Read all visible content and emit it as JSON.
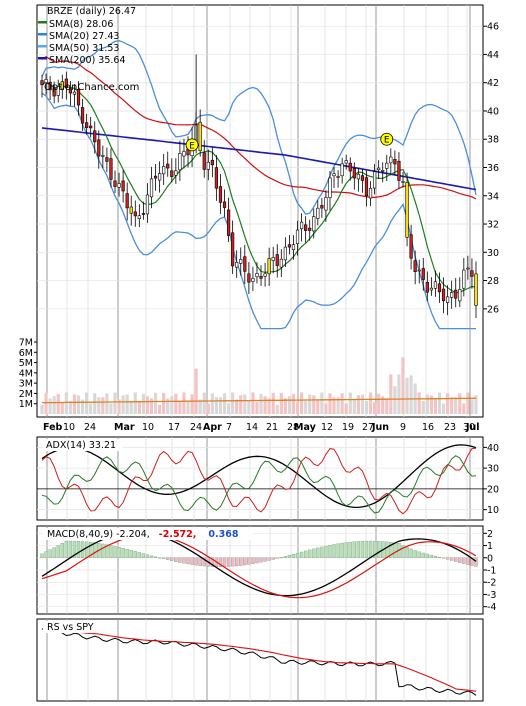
{
  "chart_data": [
    {
      "type": "candlestick",
      "title": "BRZE (daily) 26.47",
      "watermark": "OptionChance.com",
      "legend": [
        {
          "label": "SMA(8) 28.06",
          "color": "#1e7d1e"
        },
        {
          "label": "SMA(20) 27.43",
          "color": "#2b82d9"
        },
        {
          "label": "SMA(50) 31.53",
          "color": "#55aaee"
        },
        {
          "label": "SMA(200) 35.64",
          "color": "#1a1ab0"
        }
      ],
      "y_ticks": [
        46,
        44,
        42,
        40,
        38,
        36,
        34,
        32,
        30,
        28,
        26
      ],
      "ylim": [
        24.5,
        47.5
      ],
      "x_labels": [
        "Feb",
        "10",
        "24",
        "Mar",
        "10",
        "17",
        "24",
        "Apr",
        "7",
        "14",
        "21",
        "28",
        "May",
        "12",
        "19",
        "27",
        "Jun",
        "9",
        "16",
        "23",
        "30",
        "Jul"
      ],
      "earnings_markers": [
        "E",
        "E"
      ],
      "colors": {
        "up": "#ffffff",
        "down": "#cc2222",
        "yellow": "#ffe000",
        "sma8": "#1e7d1e",
        "upper_band": "#4a90d9",
        "sma50": "#cc1111",
        "sma200": "#1a1ab0"
      }
    },
    {
      "type": "bar",
      "y_ticks": [
        "7M",
        "6M",
        "5M",
        "4M",
        "3M",
        "2M",
        "1M"
      ],
      "ylim": [
        0,
        7
      ]
    },
    {
      "type": "line",
      "title": "ADX(14) 33.21",
      "y_ticks": [
        40,
        30,
        20,
        10
      ],
      "ylim": [
        5,
        45
      ]
    },
    {
      "type": "line",
      "title": "MACD(8,40,9) -2.204,",
      "values": [
        "-2.572,",
        "0.368"
      ],
      "y_ticks": [
        2,
        1,
        0,
        -1,
        -2,
        -3,
        -4
      ],
      "ylim": [
        -4.6,
        2.6
      ]
    },
    {
      "type": "line",
      "title": "RS vs SPY"
    }
  ]
}
